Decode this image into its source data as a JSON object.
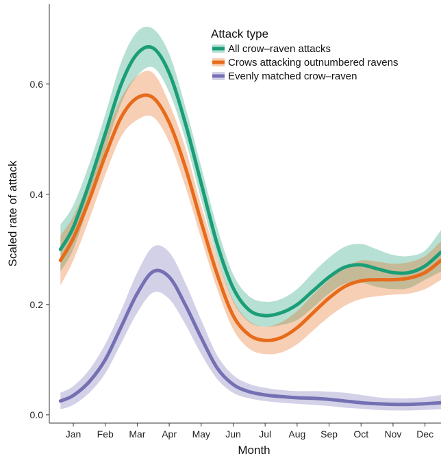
{
  "chart_data": {
    "type": "line",
    "xlabel": "Month",
    "ylabel": "Scaled rate of attack",
    "xlim": [
      0.25,
      12.5
    ],
    "ylim": [
      -0.015,
      0.745
    ],
    "x_ticks": [
      {
        "value": 1,
        "label": "Jan"
      },
      {
        "value": 2,
        "label": "Feb"
      },
      {
        "value": 3,
        "label": "Mar"
      },
      {
        "value": 4,
        "label": "Apr"
      },
      {
        "value": 5,
        "label": "May"
      },
      {
        "value": 6,
        "label": "Jun"
      },
      {
        "value": 7,
        "label": "Jul"
      },
      {
        "value": 8,
        "label": "Aug"
      },
      {
        "value": 9,
        "label": "Sep"
      },
      {
        "value": 10,
        "label": "Oct"
      },
      {
        "value": 11,
        "label": "Nov"
      },
      {
        "value": 12,
        "label": "Dec"
      }
    ],
    "y_ticks": [
      {
        "value": 0.0,
        "label": "0.0"
      },
      {
        "value": 0.2,
        "label": "0.2"
      },
      {
        "value": 0.4,
        "label": "0.4"
      },
      {
        "value": 0.6,
        "label": "0.6"
      }
    ],
    "grid": false,
    "legend": {
      "title": "Attack type",
      "position": "top-right"
    },
    "series": [
      {
        "name": "All crow–raven attacks",
        "color": "#1b9e77",
        "x": [
          0.6,
          1.0,
          1.5,
          2.0,
          2.5,
          3.0,
          3.5,
          4.0,
          4.5,
          5.0,
          5.5,
          6.0,
          6.5,
          7.0,
          7.5,
          8.0,
          8.5,
          9.0,
          9.5,
          10.0,
          10.5,
          11.0,
          11.5,
          12.0,
          12.5
        ],
        "y": [
          0.3,
          0.34,
          0.42,
          0.51,
          0.6,
          0.655,
          0.665,
          0.62,
          0.53,
          0.42,
          0.31,
          0.23,
          0.19,
          0.18,
          0.185,
          0.2,
          0.225,
          0.25,
          0.268,
          0.272,
          0.265,
          0.258,
          0.258,
          0.27,
          0.295
        ],
        "lower": [
          0.26,
          0.3,
          0.385,
          0.48,
          0.565,
          0.615,
          0.63,
          0.585,
          0.5,
          0.39,
          0.285,
          0.205,
          0.168,
          0.16,
          0.163,
          0.172,
          0.195,
          0.22,
          0.238,
          0.24,
          0.232,
          0.228,
          0.23,
          0.245,
          0.26
        ],
        "upper": [
          0.345,
          0.38,
          0.455,
          0.545,
          0.64,
          0.695,
          0.7,
          0.655,
          0.56,
          0.45,
          0.34,
          0.255,
          0.215,
          0.205,
          0.21,
          0.228,
          0.258,
          0.285,
          0.305,
          0.31,
          0.3,
          0.29,
          0.288,
          0.298,
          0.335
        ]
      },
      {
        "name": "Crows attacking outnumbered ravens",
        "color": "#e76b1a",
        "x": [
          0.6,
          1.0,
          1.5,
          2.0,
          2.5,
          3.0,
          3.5,
          4.0,
          4.5,
          5.0,
          5.5,
          6.0,
          6.5,
          7.0,
          7.5,
          8.0,
          8.5,
          9.0,
          9.5,
          10.0,
          10.5,
          11.0,
          11.5,
          12.0,
          12.5
        ],
        "y": [
          0.28,
          0.32,
          0.39,
          0.47,
          0.54,
          0.575,
          0.575,
          0.53,
          0.45,
          0.35,
          0.255,
          0.18,
          0.145,
          0.135,
          0.14,
          0.158,
          0.185,
          0.212,
          0.233,
          0.243,
          0.245,
          0.245,
          0.248,
          0.258,
          0.28
        ],
        "lower": [
          0.235,
          0.28,
          0.355,
          0.435,
          0.505,
          0.535,
          0.54,
          0.495,
          0.415,
          0.32,
          0.228,
          0.155,
          0.12,
          0.11,
          0.113,
          0.128,
          0.153,
          0.178,
          0.198,
          0.21,
          0.215,
          0.218,
          0.22,
          0.228,
          0.245
        ],
        "upper": [
          0.325,
          0.36,
          0.425,
          0.505,
          0.575,
          0.615,
          0.62,
          0.565,
          0.485,
          0.38,
          0.285,
          0.208,
          0.17,
          0.16,
          0.168,
          0.188,
          0.218,
          0.245,
          0.268,
          0.28,
          0.278,
          0.274,
          0.277,
          0.288,
          0.315
        ]
      },
      {
        "name": "Evenly matched crow–raven",
        "color": "#7570b3",
        "x": [
          0.6,
          1.0,
          1.5,
          2.0,
          2.5,
          3.0,
          3.5,
          4.0,
          4.5,
          5.0,
          5.5,
          6.0,
          6.5,
          7.0,
          7.5,
          8.0,
          8.5,
          9.0,
          9.5,
          10.0,
          10.5,
          11.0,
          11.5,
          12.0,
          12.5
        ],
        "y": [
          0.025,
          0.035,
          0.06,
          0.1,
          0.16,
          0.22,
          0.26,
          0.25,
          0.2,
          0.14,
          0.085,
          0.055,
          0.042,
          0.036,
          0.033,
          0.031,
          0.03,
          0.028,
          0.025,
          0.022,
          0.02,
          0.019,
          0.019,
          0.02,
          0.022
        ],
        "lower": [
          0.01,
          0.018,
          0.04,
          0.075,
          0.13,
          0.185,
          0.222,
          0.21,
          0.165,
          0.11,
          0.065,
          0.04,
          0.03,
          0.025,
          0.022,
          0.02,
          0.018,
          0.016,
          0.013,
          0.011,
          0.009,
          0.008,
          0.008,
          0.009,
          0.01
        ],
        "upper": [
          0.04,
          0.052,
          0.082,
          0.128,
          0.19,
          0.258,
          0.305,
          0.295,
          0.24,
          0.172,
          0.108,
          0.072,
          0.056,
          0.049,
          0.045,
          0.043,
          0.043,
          0.042,
          0.04,
          0.036,
          0.032,
          0.03,
          0.03,
          0.032,
          0.036
        ]
      }
    ]
  }
}
